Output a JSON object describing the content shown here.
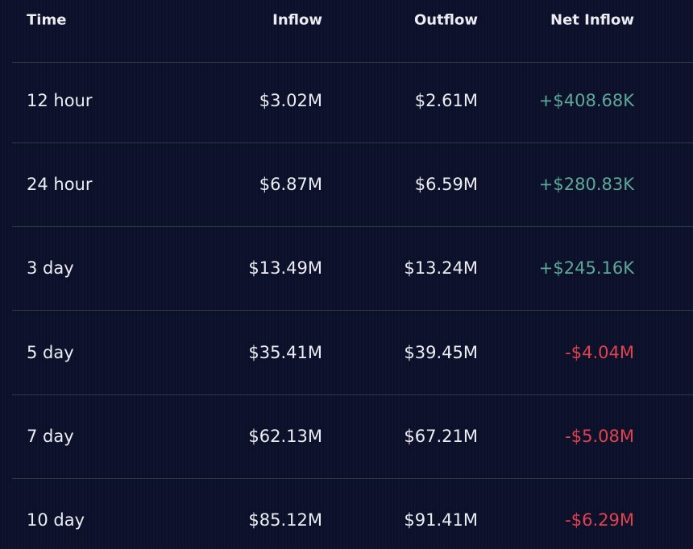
{
  "table": {
    "header": [
      "Time",
      "Inflow",
      "Outflow",
      "Net Inflow"
    ],
    "rows": [
      [
        "12 hour",
        "$3.02M",
        "$2.61M",
        "+$408.68K"
      ],
      [
        "24 hour",
        "$6.87M",
        "$6.59M",
        "+$280.83K"
      ],
      [
        "3 day",
        "$13.49M",
        "$13.24M",
        "+$245.16K"
      ],
      [
        "5 day",
        "$35.41M",
        "$39.45M",
        "-$4.04M"
      ],
      [
        "7 day",
        "$62.13M",
        "$67.21M",
        "-$5.08M"
      ],
      [
        "10 day",
        "$85.12M",
        "$91.41M",
        "-$6.29M"
      ]
    ]
  }
}
